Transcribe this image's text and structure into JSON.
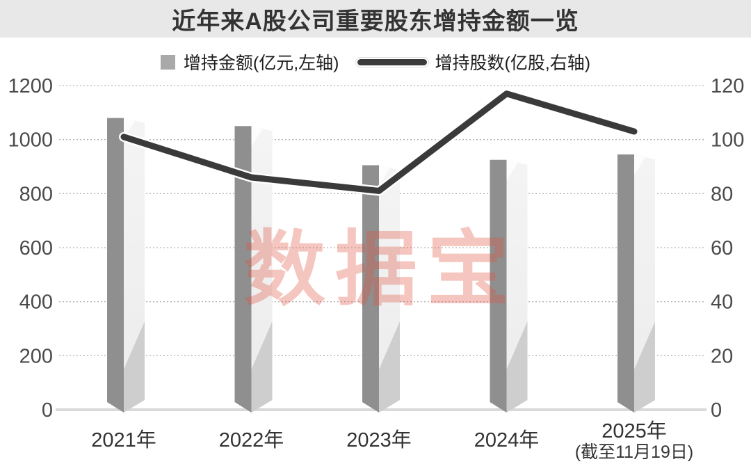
{
  "header": {
    "title": "近年来A股公司重要股东增持金额一览"
  },
  "legend": [
    {
      "label": "增持金额(亿元,左轴)",
      "marker": "bar-swatch"
    },
    {
      "label": "增持股数(亿股,右轴)",
      "marker": "line-swatch"
    }
  ],
  "watermark": "数据宝",
  "chart_data": {
    "type": "bar+line",
    "title": "近年来A股公司重要股东增持金额一览",
    "categories": [
      "2021年",
      "2022年",
      "2023年",
      "2024年",
      "2025年"
    ],
    "category_note": {
      "index": 4,
      "text": "(截至11月19日)"
    },
    "series": [
      {
        "name": "增持金额(亿元,左轴)",
        "type": "bar",
        "axis": "left",
        "values": [
          1080,
          1050,
          905,
          925,
          945
        ]
      },
      {
        "name": "增持股数(亿股,右轴)",
        "type": "line",
        "axis": "right",
        "values": [
          101,
          86,
          81,
          117,
          103
        ]
      }
    ],
    "left_axis": {
      "min": 0,
      "max": 1200,
      "step": 200,
      "ticks": [
        "0",
        "200",
        "400",
        "600",
        "800",
        "1000",
        "1200"
      ]
    },
    "right_axis": {
      "min": 0,
      "max": 120,
      "step": 20,
      "ticks": [
        "0",
        "20",
        "40",
        "60",
        "80",
        "100",
        "120"
      ]
    },
    "grid": "dotted horizontal, solid baseline",
    "legend_position": "top center"
  },
  "colors": {
    "header_bg": "#e8e8e8",
    "title_text": "#333333",
    "tick_text": "#4a4a4a",
    "xlabel_text": "#333333",
    "grid": "#b3b3b3",
    "baseline": "#d9d9d9",
    "bar_dark_face": "#8f8f8f",
    "bar_light_top": "#f4f4f4",
    "bar_light_bottom": "#ececec",
    "bar_band": "#c6c6c6",
    "line": "#3a3a3a",
    "line_casing": "#ffffff",
    "legend_square": "#a9a9a9",
    "watermark": "rgba(226,82,60,0.33)"
  }
}
